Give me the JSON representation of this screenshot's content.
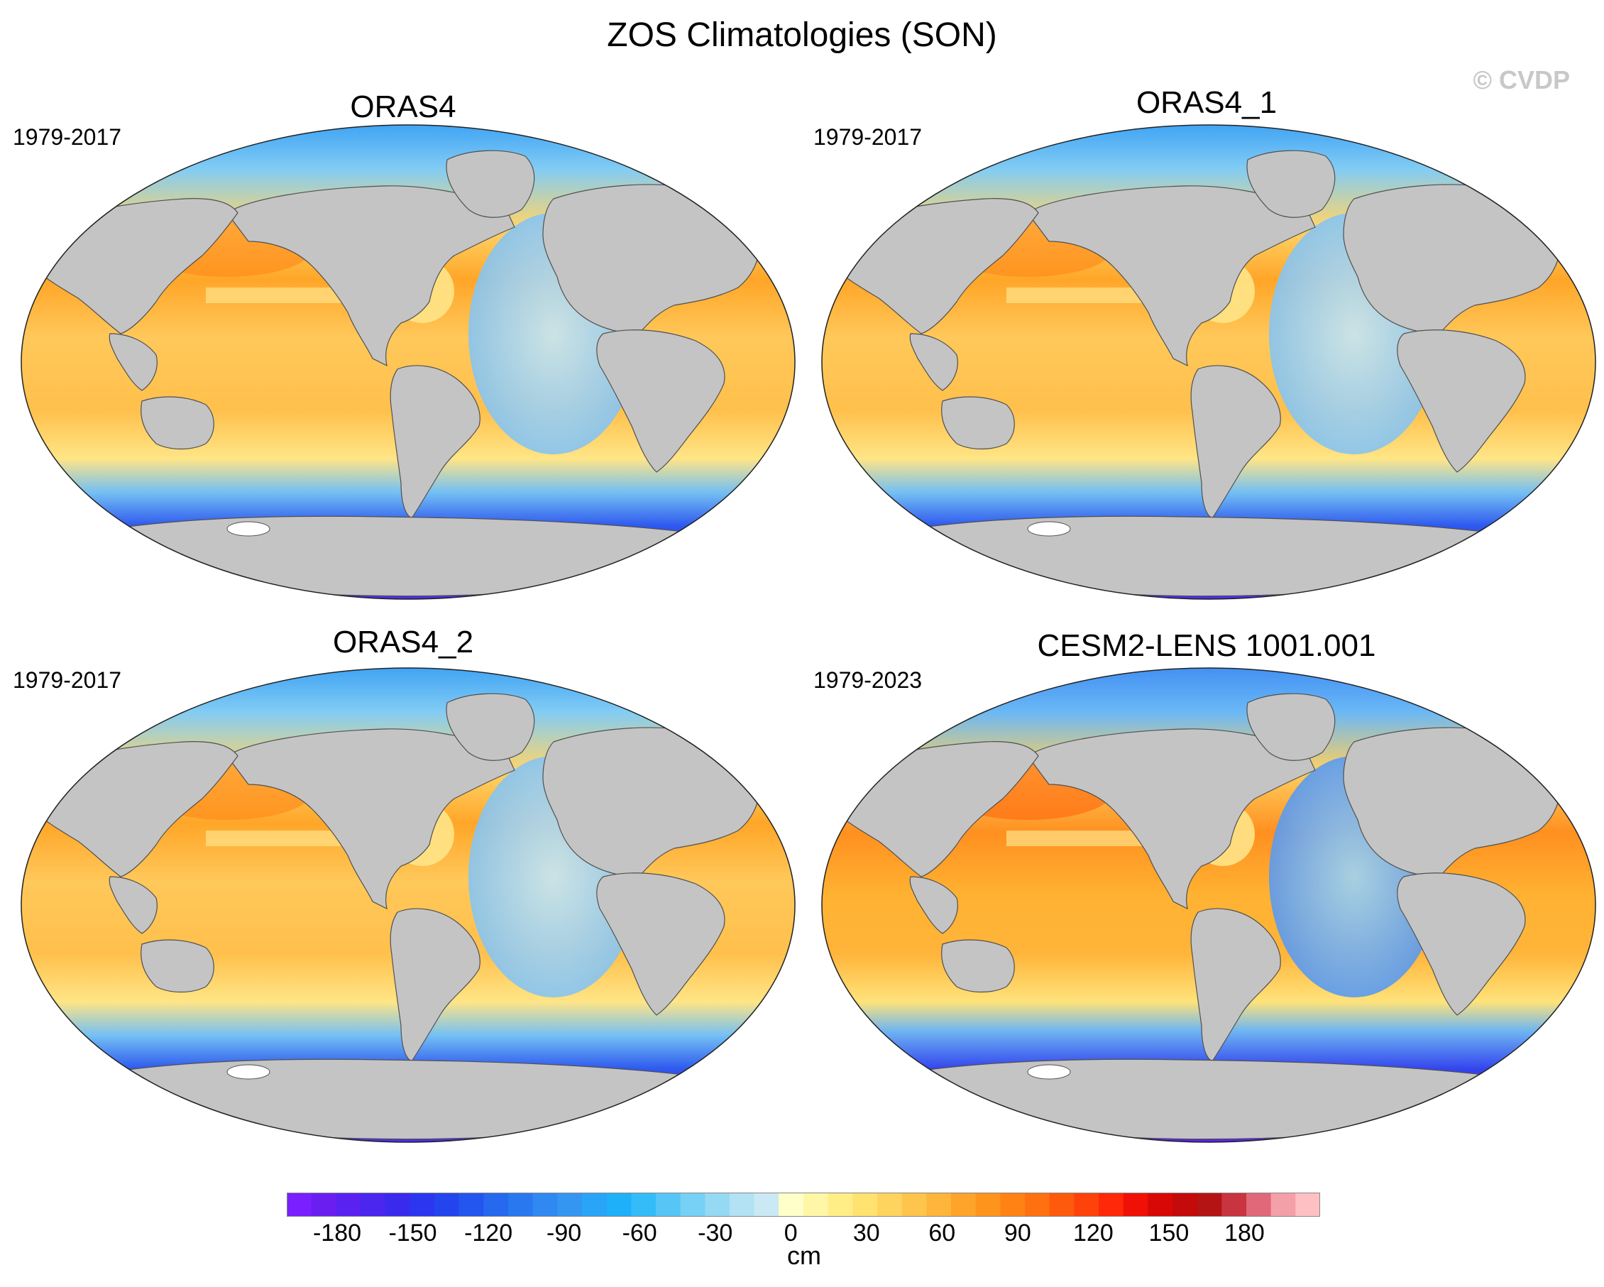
{
  "title": "ZOS Climatologies (SON)",
  "watermark": "© CVDP",
  "panels": [
    {
      "title": "ORAS4",
      "period": "1979-2017"
    },
    {
      "title": "ORAS4_1",
      "period": "1979-2017"
    },
    {
      "title": "ORAS4_2",
      "period": "1979-2017"
    },
    {
      "title": "CESM2-LENS 1001.001",
      "period": "1979-2023"
    }
  ],
  "colorbar": {
    "units": "cm",
    "ticks": [
      "-180",
      "-150",
      "-120",
      "-90",
      "-60",
      "-30",
      "0",
      "30",
      "60",
      "90",
      "120",
      "150",
      "180"
    ],
    "tick_values": [
      -180,
      -150,
      -120,
      -90,
      -60,
      -30,
      0,
      30,
      60,
      90,
      120,
      150,
      180
    ],
    "range": [
      -200,
      210
    ],
    "colors": [
      "#7a1fff",
      "#6a1ff0",
      "#5a22f0",
      "#4a26ee",
      "#3a2aee",
      "#2c36f0",
      "#2444ee",
      "#2356ee",
      "#2668ee",
      "#2a78f0",
      "#3088f2",
      "#3596f2",
      "#2aa4f6",
      "#1eb0f8",
      "#33bcf8",
      "#55c6f6",
      "#77d0f5",
      "#96d9f4",
      "#b2e2f4",
      "#cbe9f4",
      "#ffffc9",
      "#fff7a6",
      "#ffee86",
      "#ffe270",
      "#ffd45e",
      "#ffc44c",
      "#ffb43a",
      "#ffa42a",
      "#ff941c",
      "#ff8214",
      "#ff7010",
      "#ff5a0c",
      "#ff420a",
      "#ff2808",
      "#f01006",
      "#d80806",
      "#c40a0a",
      "#b41414",
      "#c83440",
      "#e06878",
      "#f4a0a8",
      "#ffc0c4"
    ]
  },
  "map_colors": {
    "land": "#c4c4c4",
    "coast": "#505050",
    "ice_hole": "#ffffff"
  }
}
